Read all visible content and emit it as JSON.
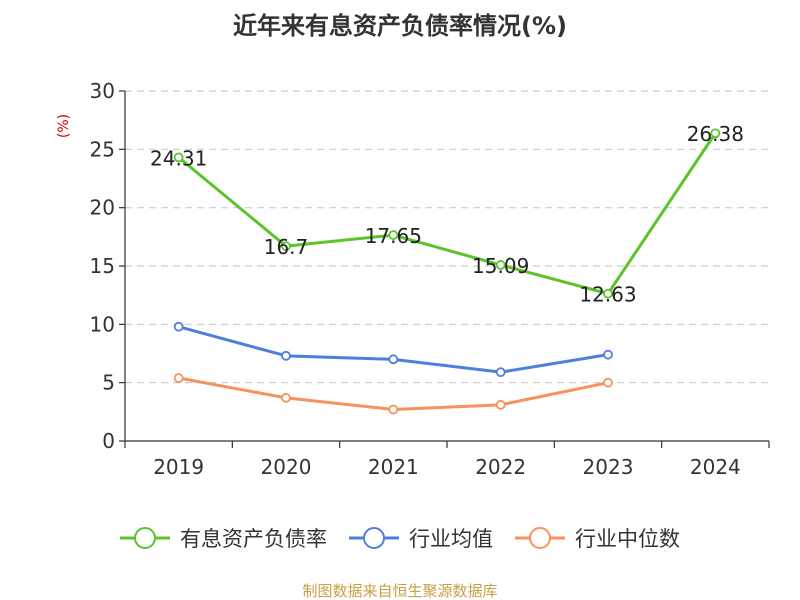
{
  "chart_data": {
    "type": "line",
    "title": "近年来有息资产负债率情况(%)",
    "ylabel": "(%)",
    "xlabel": "",
    "categories": [
      "2019",
      "2020",
      "2021",
      "2022",
      "2023",
      "2024"
    ],
    "ylim": [
      0,
      30
    ],
    "yticks": [
      0,
      5,
      10,
      15,
      20,
      25,
      30
    ],
    "grid": true,
    "legend_position": "bottom",
    "series": [
      {
        "name": "有息资产负债率",
        "color": "#5cc42b",
        "values": [
          24.31,
          16.7,
          17.65,
          15.09,
          12.63,
          26.38
        ],
        "labels": [
          "24.31",
          "16.7",
          "17.65",
          "15.09",
          "12.63",
          "26.38"
        ]
      },
      {
        "name": "行业均值",
        "color": "#4f7fdc",
        "values": [
          9.8,
          7.3,
          7.0,
          5.9,
          7.4,
          null
        ]
      },
      {
        "name": "行业中位数",
        "color": "#f5925e",
        "values": [
          5.4,
          3.7,
          2.7,
          3.1,
          5.0,
          null
        ]
      }
    ],
    "source": "制图数据来自恒生聚源数据库",
    "source_color": "#c8a046"
  }
}
